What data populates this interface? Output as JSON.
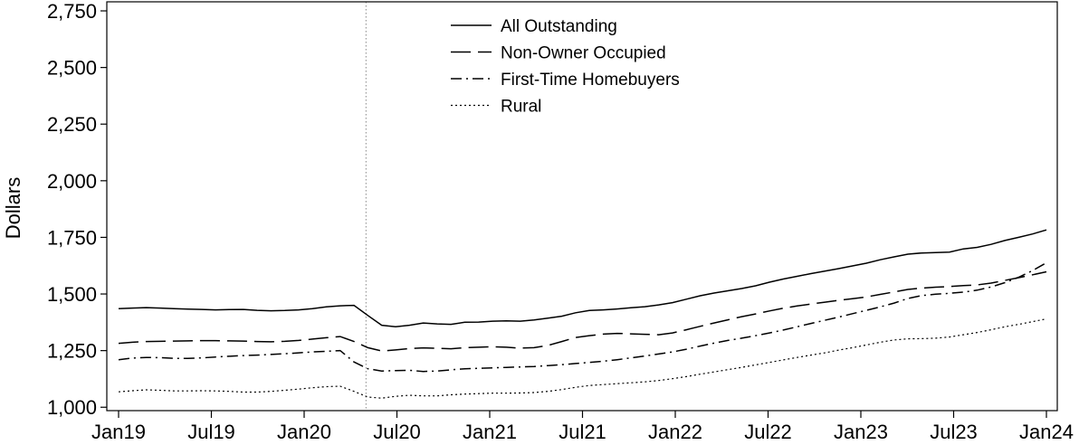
{
  "chart_data": {
    "type": "line",
    "title": "",
    "xlabel": "",
    "ylabel": "Dollars",
    "ylim": [
      985,
      2790
    ],
    "y_ticks": [
      1000,
      1250,
      1500,
      1750,
      2000,
      2250,
      2500,
      2750
    ],
    "y_tick_labels": [
      "1,000",
      "1,250",
      "1,500",
      "1,750",
      "2,000",
      "2,250",
      "2,500",
      "2,750"
    ],
    "x_ticks": [
      "Jan19",
      "Jul19",
      "Jan20",
      "Jul20",
      "Jan21",
      "Jul21",
      "Jan22",
      "Jul22",
      "Jan23",
      "Jul23",
      "Jan24"
    ],
    "grid": false,
    "legend_position": "top-center",
    "event_marker_month": "May20",
    "series": [
      {
        "name": "All Outstanding",
        "style": "solid",
        "values": [
          1435,
          1438,
          1440,
          1438,
          1435,
          1433,
          1432,
          1430,
          1431,
          1432,
          1428,
          1426,
          1427,
          1430,
          1435,
          1443,
          1448,
          1450,
          1405,
          1362,
          1355,
          1362,
          1372,
          1368,
          1366,
          1375,
          1376,
          1380,
          1381,
          1380,
          1385,
          1393,
          1402,
          1417,
          1427,
          1430,
          1434,
          1439,
          1444,
          1452,
          1462,
          1477,
          1492,
          1504,
          1514,
          1524,
          1536,
          1552,
          1566,
          1578,
          1590,
          1601,
          1612,
          1624,
          1636,
          1651,
          1664,
          1676,
          1681,
          1683,
          1685,
          1699,
          1706,
          1719,
          1736,
          1750,
          1765,
          1783
        ]
      },
      {
        "name": "Non-Owner Occupied",
        "style": "long-dash",
        "values": [
          1282,
          1287,
          1290,
          1291,
          1292,
          1293,
          1294,
          1294,
          1293,
          1292,
          1290,
          1289,
          1291,
          1295,
          1301,
          1307,
          1312,
          1290,
          1263,
          1248,
          1253,
          1259,
          1262,
          1260,
          1258,
          1263,
          1265,
          1267,
          1265,
          1261,
          1263,
          1273,
          1290,
          1308,
          1316,
          1323,
          1326,
          1324,
          1322,
          1320,
          1328,
          1342,
          1357,
          1372,
          1386,
          1400,
          1412,
          1425,
          1437,
          1447,
          1456,
          1464,
          1472,
          1479,
          1487,
          1498,
          1509,
          1520,
          1526,
          1530,
          1533,
          1537,
          1540,
          1548,
          1560,
          1572,
          1585,
          1598
        ]
      },
      {
        "name": "First-Time Homebuyers",
        "style": "dash-dot",
        "values": [
          1210,
          1217,
          1220,
          1219,
          1216,
          1216,
          1218,
          1222,
          1225,
          1228,
          1230,
          1233,
          1236,
          1240,
          1244,
          1247,
          1250,
          1200,
          1170,
          1160,
          1162,
          1163,
          1158,
          1160,
          1165,
          1170,
          1172,
          1174,
          1176,
          1178,
          1180,
          1184,
          1188,
          1193,
          1198,
          1203,
          1210,
          1218,
          1226,
          1235,
          1244,
          1256,
          1270,
          1283,
          1295,
          1305,
          1316,
          1328,
          1341,
          1355,
          1370,
          1384,
          1398,
          1413,
          1428,
          1443,
          1460,
          1480,
          1493,
          1499,
          1503,
          1508,
          1517,
          1531,
          1550,
          1574,
          1603,
          1638
        ]
      },
      {
        "name": "Rural",
        "style": "dotted",
        "values": [
          1068,
          1073,
          1077,
          1075,
          1072,
          1072,
          1073,
          1072,
          1070,
          1067,
          1067,
          1070,
          1075,
          1080,
          1086,
          1091,
          1093,
          1070,
          1045,
          1040,
          1048,
          1053,
          1050,
          1050,
          1055,
          1058,
          1060,
          1062,
          1062,
          1063,
          1065,
          1070,
          1078,
          1088,
          1096,
          1100,
          1104,
          1108,
          1112,
          1118,
          1126,
          1135,
          1146,
          1156,
          1166,
          1176,
          1187,
          1198,
          1209,
          1220,
          1230,
          1240,
          1252,
          1263,
          1275,
          1287,
          1297,
          1302,
          1303,
          1305,
          1310,
          1320,
          1330,
          1342,
          1355,
          1366,
          1378,
          1390
        ]
      }
    ]
  }
}
